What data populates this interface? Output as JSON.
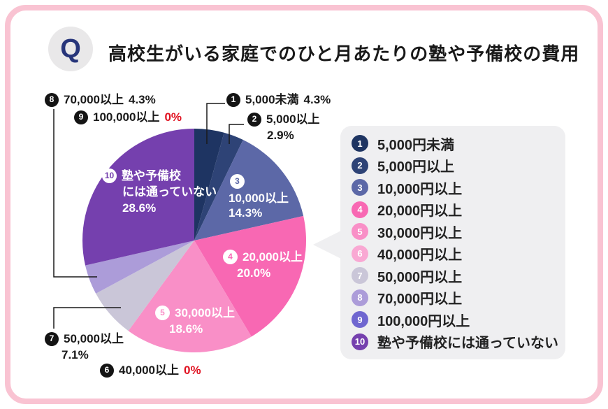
{
  "header": {
    "q_label": "Q",
    "title": "高校生がいる家庭でのひと月あたりの塾や予備校の費用"
  },
  "frame": {
    "border_color": "#f9c3d2",
    "card_bg": "#ffffff",
    "legend_bg": "#efeff1",
    "q_badge_bg": "#e9e8e9",
    "q_text_color": "#27357a"
  },
  "chart_data": {
    "type": "pie",
    "title": "高校生がいる家庭でのひと月あたりの塾や予備校の費用",
    "direction": "clockwise",
    "start_angle_deg": 0,
    "zero_pct_color": "#e0101f",
    "slices": [
      {
        "n": 1,
        "label": "5,000未満",
        "legend_label": "5,000円未満",
        "pct": 4.3,
        "pct_label": "4.3%",
        "color": "#1e3462",
        "label_placement": "outside"
      },
      {
        "n": 2,
        "label": "5,000以上",
        "legend_label": "5,000円以上",
        "pct": 2.9,
        "pct_label": "2.9%",
        "color": "#2e4376",
        "label_placement": "outside"
      },
      {
        "n": 3,
        "label": "10,000以上",
        "legend_label": "10,000円以上",
        "pct": 14.3,
        "pct_label": "14.3%",
        "color": "#5c68a7",
        "label_placement": "inside"
      },
      {
        "n": 4,
        "label": "20,000以上",
        "legend_label": "20,000円以上",
        "pct": 20.0,
        "pct_label": "20.0%",
        "color": "#f868b3",
        "label_placement": "inside"
      },
      {
        "n": 5,
        "label": "30,000以上",
        "legend_label": "30,000円以上",
        "pct": 18.6,
        "pct_label": "18.6%",
        "color": "#f98fc7",
        "label_placement": "inside"
      },
      {
        "n": 6,
        "label": "40,000以上",
        "legend_label": "40,000円以上",
        "pct": 0,
        "pct_label": "0%",
        "color": "#f9a8d3",
        "label_placement": "outside"
      },
      {
        "n": 7,
        "label": "50,000以上",
        "legend_label": "50,000円以上",
        "pct": 7.1,
        "pct_label": "7.1%",
        "color": "#cac6d8",
        "label_placement": "outside"
      },
      {
        "n": 8,
        "label": "70,000以上",
        "legend_label": "70,000円以上",
        "pct": 4.3,
        "pct_label": "4.3%",
        "color": "#ac9cd9",
        "label_placement": "outside"
      },
      {
        "n": 9,
        "label": "100,000以上",
        "legend_label": "100,000円以上",
        "pct": 0,
        "pct_label": "0%",
        "color": "#6f66d0",
        "label_placement": "outside"
      },
      {
        "n": 10,
        "label": "塾や予備校",
        "label2": "には通っていない",
        "legend_label": "塾や予備校には通っていない",
        "pct": 28.6,
        "pct_label": "28.6%",
        "color": "#7540ae",
        "label_placement": "inside"
      }
    ]
  }
}
